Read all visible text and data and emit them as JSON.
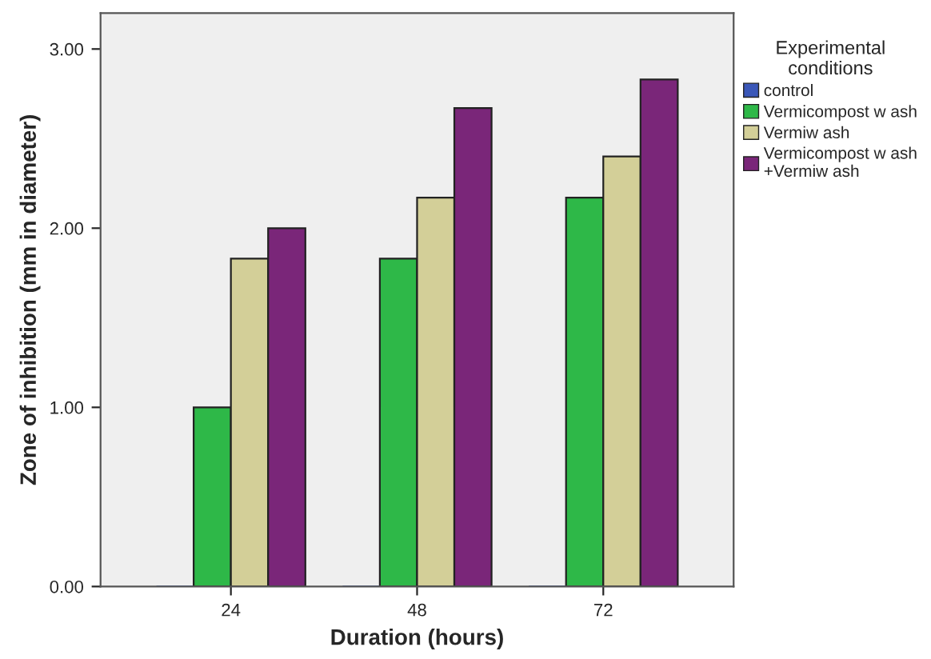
{
  "chart_data": {
    "type": "bar",
    "xlabel": "Duration (hours)",
    "ylabel": "Zone of inhibition (mm in diameter)",
    "legend_title": "Experimental\nconditions",
    "categories": [
      "24",
      "48",
      "72"
    ],
    "series": [
      {
        "name": "control",
        "color": "#3a57b8",
        "values": [
          0,
          0,
          0
        ]
      },
      {
        "name": "Vermicompost w ash",
        "color": "#2eb848",
        "values": [
          1.0,
          1.83,
          2.17
        ]
      },
      {
        "name": "Vermiw ash",
        "color": "#d3cf98",
        "values": [
          1.83,
          2.17,
          2.4
        ]
      },
      {
        "name": "Vermicompost w ash\n+Vermiw ash",
        "color": "#7a2679",
        "values": [
          2.0,
          2.67,
          2.83
        ]
      }
    ],
    "ylim": [
      0,
      3.2
    ],
    "yticks": [
      {
        "value": 0,
        "label": "0.00"
      },
      {
        "value": 1,
        "label": "1.00"
      },
      {
        "value": 2,
        "label": "2.00"
      },
      {
        "value": 3,
        "label": "3.00"
      }
    ],
    "grid": false,
    "legend": "right"
  }
}
